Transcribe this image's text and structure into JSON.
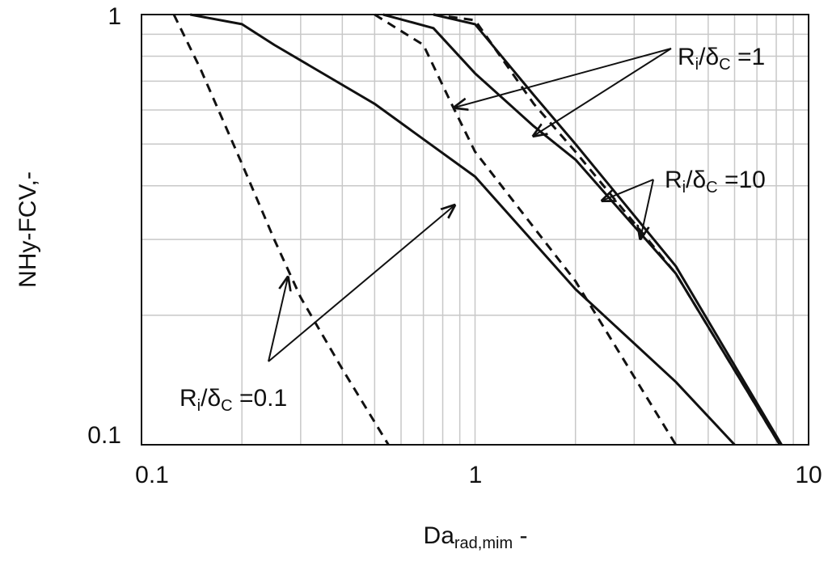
{
  "chart_data": {
    "type": "line",
    "title": "",
    "xlabel": {
      "main": "Da",
      "sub": "rad,mim",
      "suffix": " -"
    },
    "ylabel": "NHy-FCV,-",
    "x_scale": "log",
    "y_scale": "log",
    "xlim": [
      0.1,
      10
    ],
    "ylim": [
      0.1,
      1
    ],
    "x_ticks": [
      0.1,
      1,
      10
    ],
    "x_tick_labels": [
      "0.1",
      "1",
      "10"
    ],
    "y_ticks": [
      0.1,
      1
    ],
    "y_tick_labels": [
      "0.1",
      "1"
    ],
    "grid": true,
    "legend": "none",
    "series": [
      {
        "style": "solid",
        "x": [
          0.14,
          0.2,
          0.25,
          0.5,
          1.0,
          2.0,
          4.0,
          6.0
        ],
        "y": [
          1.0,
          0.95,
          0.85,
          0.62,
          0.42,
          0.23,
          0.14,
          0.1
        ]
      },
      {
        "style": "dashed",
        "x": [
          0.125,
          0.15,
          0.2,
          0.25,
          0.3,
          0.4,
          0.55
        ],
        "y": [
          1.0,
          0.75,
          0.45,
          0.3,
          0.22,
          0.15,
          0.1
        ]
      },
      {
        "style": "solid",
        "x": [
          0.53,
          0.75,
          1.0,
          1.5,
          2.0,
          4.0,
          8.2
        ],
        "y": [
          1.0,
          0.93,
          0.73,
          0.55,
          0.46,
          0.25,
          0.1
        ]
      },
      {
        "style": "dashed",
        "x": [
          0.5,
          0.7,
          0.85,
          1.0,
          2.0,
          4.0
        ],
        "y": [
          1.0,
          0.85,
          0.62,
          0.48,
          0.24,
          0.1
        ]
      },
      {
        "style": "solid",
        "x": [
          0.75,
          1.0,
          1.5,
          2.0,
          4.0,
          8.3
        ],
        "y": [
          1.0,
          0.95,
          0.65,
          0.5,
          0.26,
          0.1
        ]
      },
      {
        "style": "dashed",
        "x": [
          0.75,
          1.0,
          1.5,
          2.0,
          4.0,
          8.2
        ],
        "y": [
          1.0,
          0.97,
          0.62,
          0.48,
          0.25,
          0.1
        ]
      }
    ],
    "annotations": [
      {
        "main": "R",
        "sub1": "i",
        "mid": "/δ",
        "sub2": "C",
        "tail": " =1"
      },
      {
        "main": "R",
        "sub1": "i",
        "mid": "/δ",
        "sub2": "C",
        "tail": " =10"
      },
      {
        "main": "R",
        "sub1": "i",
        "mid": "/δ",
        "sub2": "C",
        "tail": " =0.1"
      }
    ]
  }
}
